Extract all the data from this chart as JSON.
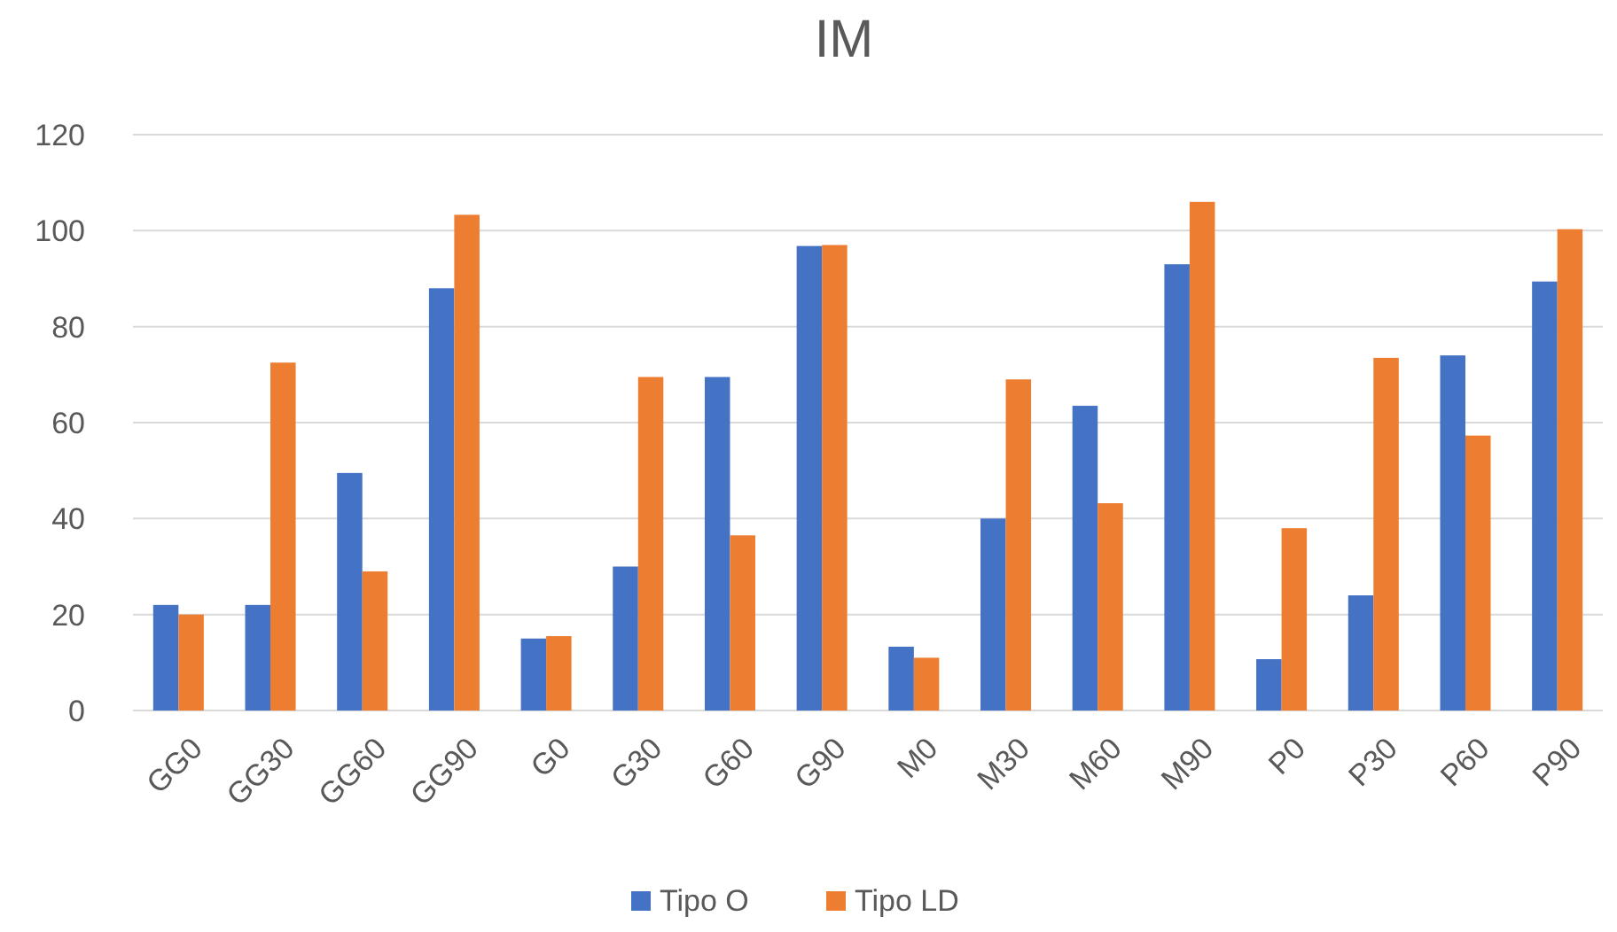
{
  "chart_data": {
    "type": "bar",
    "title": "IM",
    "categories": [
      "GG0",
      "GG30",
      "GG60",
      "GG90",
      "G0",
      "G30",
      "G60",
      "G90",
      "M0",
      "M30",
      "M60",
      "M90",
      "P0",
      "P30",
      "P60",
      "P90"
    ],
    "series": [
      {
        "name": "Tipo O",
        "color": "#4472c4",
        "values": [
          22,
          22,
          49.5,
          88,
          15,
          30,
          69.5,
          96.8,
          13.3,
          40,
          63.5,
          93,
          10.7,
          24,
          74,
          89.4
        ]
      },
      {
        "name": "Tipo LD",
        "color": "#ed7d31",
        "values": [
          20,
          72.5,
          29,
          103.3,
          15.5,
          69.5,
          36.5,
          97,
          11,
          69,
          43.2,
          106,
          38,
          73.5,
          57.3,
          100.3
        ]
      }
    ],
    "ylim": [
      0,
      120
    ],
    "yticks": [
      0,
      20,
      40,
      60,
      80,
      100,
      120
    ],
    "grid": "y",
    "legend": "bottom"
  }
}
